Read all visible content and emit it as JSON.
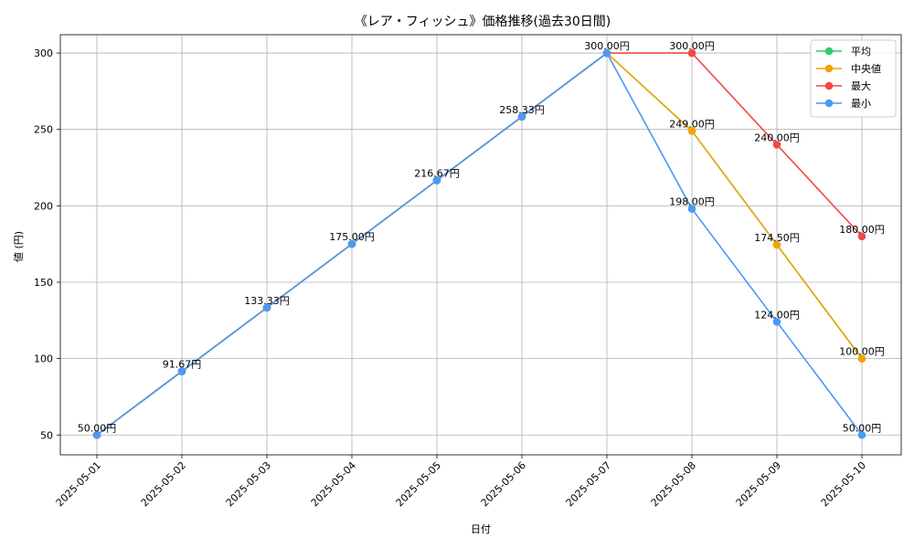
{
  "chart_data": {
    "type": "line",
    "title": "《レア・フィッシュ》価格推移(過去30日間)",
    "xlabel": "日付",
    "ylabel": "値 (円)",
    "categories": [
      "2025-05-01",
      "2025-05-02",
      "2025-05-03",
      "2025-05-04",
      "2025-05-05",
      "2025-05-06",
      "2025-05-07",
      "2025-05-08",
      "2025-05-09",
      "2025-05-10"
    ],
    "ylim": [
      37,
      312
    ],
    "yticks": [
      50,
      100,
      150,
      200,
      250,
      300
    ],
    "grid": true,
    "legend_position": "top-right",
    "label_suffix": "円",
    "series": [
      {
        "name": "平均",
        "color": "#2ecc71",
        "values": [
          50.0,
          91.67,
          133.33,
          175.0,
          216.67,
          258.33,
          300.0,
          249.0,
          174.5,
          100.0
        ]
      },
      {
        "name": "中央値",
        "color": "#f0a500",
        "values": [
          50.0,
          91.67,
          133.33,
          175.0,
          216.67,
          258.33,
          300.0,
          249.0,
          174.5,
          100.0
        ]
      },
      {
        "name": "最大",
        "color": "#f04848",
        "values": [
          50.0,
          91.67,
          133.33,
          175.0,
          216.67,
          258.33,
          300.0,
          300.0,
          240.0,
          180.0
        ]
      },
      {
        "name": "最小",
        "color": "#4a9af5",
        "values": [
          50.0,
          91.67,
          133.33,
          175.0,
          216.67,
          258.33,
          300.0,
          198.0,
          124.0,
          50.0
        ]
      }
    ],
    "data_labels": [
      {
        "category": "2025-05-01",
        "value": 50.0,
        "text": "50.00円",
        "series": "平均"
      },
      {
        "category": "2025-05-02",
        "value": 91.67,
        "text": "91.67円",
        "series": "平均"
      },
      {
        "category": "2025-05-03",
        "value": 133.33,
        "text": "133.33円",
        "series": "平均"
      },
      {
        "category": "2025-05-04",
        "value": 175.0,
        "text": "175.00円",
        "series": "平均"
      },
      {
        "category": "2025-05-05",
        "value": 216.67,
        "text": "216.67円",
        "series": "平均"
      },
      {
        "category": "2025-05-06",
        "value": 258.33,
        "text": "258.33円",
        "series": "平均"
      },
      {
        "category": "2025-05-07",
        "value": 300.0,
        "text": "300.00円",
        "series": "平均"
      },
      {
        "category": "2025-05-08",
        "value": 300.0,
        "text": "300.00円",
        "series": "最大"
      },
      {
        "category": "2025-05-08",
        "value": 249.0,
        "text": "249.00円",
        "series": "平均"
      },
      {
        "category": "2025-05-08",
        "value": 198.0,
        "text": "198.00円",
        "series": "最小"
      },
      {
        "category": "2025-05-09",
        "value": 240.0,
        "text": "240.00円",
        "series": "最大"
      },
      {
        "category": "2025-05-09",
        "value": 174.5,
        "text": "174.50円",
        "series": "平均"
      },
      {
        "category": "2025-05-09",
        "value": 124.0,
        "text": "124.00円",
        "series": "最小"
      },
      {
        "category": "2025-05-10",
        "value": 180.0,
        "text": "180.00円",
        "series": "最大"
      },
      {
        "category": "2025-05-10",
        "value": 100.0,
        "text": "100.00円",
        "series": "平均"
      },
      {
        "category": "2025-05-10",
        "value": 50.0,
        "text": "50.00円",
        "series": "最小"
      }
    ]
  }
}
